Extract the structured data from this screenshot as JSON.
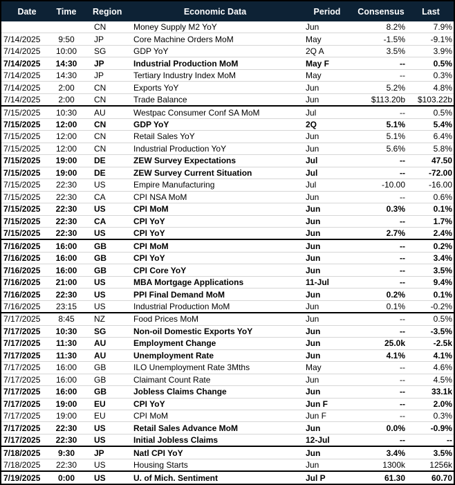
{
  "colors": {
    "header_bg": "#0d2235",
    "header_text": "#ffffff",
    "row_divider": "#d6d6d6",
    "group_divider": "#000000",
    "body_text": "#000000"
  },
  "table": {
    "columns": [
      {
        "key": "date",
        "label": "Date"
      },
      {
        "key": "time",
        "label": "Time"
      },
      {
        "key": "region",
        "label": "Region"
      },
      {
        "key": "event",
        "label": "Economic Data"
      },
      {
        "key": "period",
        "label": "Period"
      },
      {
        "key": "consensus",
        "label": "Consensus"
      },
      {
        "key": "last",
        "label": "Last"
      }
    ],
    "rows": [
      {
        "date": "",
        "time": "",
        "region": "CN",
        "event": "Money Supply M2 YoY",
        "period": "Jun",
        "consensus": "8.2%",
        "last": "7.9%",
        "bold": false,
        "group_end": false
      },
      {
        "date": "7/14/2025",
        "time": "9:50",
        "region": "JP",
        "event": "Core Machine Orders MoM",
        "period": "May",
        "consensus": "-1.5%",
        "last": "-9.1%",
        "bold": false,
        "group_end": false
      },
      {
        "date": "7/14/2025",
        "time": "10:00",
        "region": "SG",
        "event": "GDP YoY",
        "period": "2Q A",
        "consensus": "3.5%",
        "last": "3.9%",
        "bold": false,
        "group_end": false
      },
      {
        "date": "7/14/2025",
        "time": "14:30",
        "region": "JP",
        "event": "Industrial Production MoM",
        "period": "May F",
        "consensus": "--",
        "last": "0.5%",
        "bold": true,
        "group_end": false
      },
      {
        "date": "7/14/2025",
        "time": "14:30",
        "region": "JP",
        "event": "Tertiary Industry Index MoM",
        "period": "May",
        "consensus": "--",
        "last": "0.3%",
        "bold": false,
        "group_end": false
      },
      {
        "date": "7/14/2025",
        "time": "2:00",
        "region": "CN",
        "event": "Exports YoY",
        "period": "Jun",
        "consensus": "5.2%",
        "last": "4.8%",
        "bold": false,
        "group_end": false
      },
      {
        "date": "7/14/2025",
        "time": "2:00",
        "region": "CN",
        "event": "Trade Balance",
        "period": "Jun",
        "consensus": "$113.20b",
        "last": "$103.22b",
        "bold": false,
        "group_end": true
      },
      {
        "date": "7/15/2025",
        "time": "10:30",
        "region": "AU",
        "event": "Westpac Consumer Conf SA MoM",
        "period": "Jul",
        "consensus": "--",
        "last": "0.5%",
        "bold": false,
        "group_end": false
      },
      {
        "date": "7/15/2025",
        "time": "12:00",
        "region": "CN",
        "event": "GDP YoY",
        "period": "2Q",
        "consensus": "5.1%",
        "last": "5.4%",
        "bold": true,
        "group_end": false
      },
      {
        "date": "7/15/2025",
        "time": "12:00",
        "region": "CN",
        "event": "Retail Sales YoY",
        "period": "Jun",
        "consensus": "5.1%",
        "last": "6.4%",
        "bold": false,
        "group_end": false
      },
      {
        "date": "7/15/2025",
        "time": "12:00",
        "region": "CN",
        "event": "Industrial Production YoY",
        "period": "Jun",
        "consensus": "5.6%",
        "last": "5.8%",
        "bold": false,
        "group_end": false
      },
      {
        "date": "7/15/2025",
        "time": "19:00",
        "region": "DE",
        "event": "ZEW Survey Expectations",
        "period": "Jul",
        "consensus": "--",
        "last": "47.50",
        "bold": true,
        "group_end": false
      },
      {
        "date": "7/15/2025",
        "time": "19:00",
        "region": "DE",
        "event": "ZEW Survey Current Situation",
        "period": "Jul",
        "consensus": "--",
        "last": "-72.00",
        "bold": true,
        "group_end": false
      },
      {
        "date": "7/15/2025",
        "time": "22:30",
        "region": "US",
        "event": "Empire Manufacturing",
        "period": "Jul",
        "consensus": "-10.00",
        "last": "-16.00",
        "bold": false,
        "group_end": false
      },
      {
        "date": "7/15/2025",
        "time": "22:30",
        "region": "CA",
        "event": "CPI NSA MoM",
        "period": "Jun",
        "consensus": "--",
        "last": "0.6%",
        "bold": false,
        "group_end": false
      },
      {
        "date": "7/15/2025",
        "time": "22:30",
        "region": "US",
        "event": "CPI MoM",
        "period": "Jun",
        "consensus": "0.3%",
        "last": "0.1%",
        "bold": true,
        "group_end": false
      },
      {
        "date": "7/15/2025",
        "time": "22:30",
        "region": "CA",
        "event": "CPI YoY",
        "period": "Jun",
        "consensus": "--",
        "last": "1.7%",
        "bold": true,
        "group_end": false
      },
      {
        "date": "7/15/2025",
        "time": "22:30",
        "region": "US",
        "event": "CPI YoY",
        "period": "Jun",
        "consensus": "2.7%",
        "last": "2.4%",
        "bold": true,
        "group_end": true
      },
      {
        "date": "7/16/2025",
        "time": "16:00",
        "region": "GB",
        "event": "CPI MoM",
        "period": "Jun",
        "consensus": "--",
        "last": "0.2%",
        "bold": true,
        "group_end": false
      },
      {
        "date": "7/16/2025",
        "time": "16:00",
        "region": "GB",
        "event": "CPI YoY",
        "period": "Jun",
        "consensus": "--",
        "last": "3.4%",
        "bold": true,
        "group_end": false
      },
      {
        "date": "7/16/2025",
        "time": "16:00",
        "region": "GB",
        "event": "CPI Core YoY",
        "period": "Jun",
        "consensus": "--",
        "last": "3.5%",
        "bold": true,
        "group_end": false
      },
      {
        "date": "7/16/2025",
        "time": "21:00",
        "region": "US",
        "event": "MBA Mortgage Applications",
        "period": "11-Jul",
        "consensus": "--",
        "last": "9.4%",
        "bold": true,
        "group_end": false
      },
      {
        "date": "7/16/2025",
        "time": "22:30",
        "region": "US",
        "event": "PPI Final Demand MoM",
        "period": "Jun",
        "consensus": "0.2%",
        "last": "0.1%",
        "bold": true,
        "group_end": false
      },
      {
        "date": "7/16/2025",
        "time": "23:15",
        "region": "US",
        "event": "Industrial Production MoM",
        "period": "Jun",
        "consensus": "0.1%",
        "last": "-0.2%",
        "bold": false,
        "group_end": true
      },
      {
        "date": "7/17/2025",
        "time": "8:45",
        "region": "NZ",
        "event": "Food Prices MoM",
        "period": "Jun",
        "consensus": "--",
        "last": "0.5%",
        "bold": false,
        "group_end": false
      },
      {
        "date": "7/17/2025",
        "time": "10:30",
        "region": "SG",
        "event": "Non-oil Domestic Exports YoY",
        "period": "Jun",
        "consensus": "--",
        "last": "-3.5%",
        "bold": true,
        "group_end": false
      },
      {
        "date": "7/17/2025",
        "time": "11:30",
        "region": "AU",
        "event": "Employment Change",
        "period": "Jun",
        "consensus": "25.0k",
        "last": "-2.5k",
        "bold": true,
        "group_end": false
      },
      {
        "date": "7/17/2025",
        "time": "11:30",
        "region": "AU",
        "event": "Unemployment Rate",
        "period": "Jun",
        "consensus": "4.1%",
        "last": "4.1%",
        "bold": true,
        "group_end": false
      },
      {
        "date": "7/17/2025",
        "time": "16:00",
        "region": "GB",
        "event": "ILO Unemployment Rate 3Mths",
        "period": "May",
        "consensus": "--",
        "last": "4.6%",
        "bold": false,
        "group_end": false
      },
      {
        "date": "7/17/2025",
        "time": "16:00",
        "region": "GB",
        "event": "Claimant Count Rate",
        "period": "Jun",
        "consensus": "--",
        "last": "4.5%",
        "bold": false,
        "group_end": false
      },
      {
        "date": "7/17/2025",
        "time": "16:00",
        "region": "GB",
        "event": "Jobless Claims Change",
        "period": "Jun",
        "consensus": "--",
        "last": "33.1k",
        "bold": true,
        "group_end": false
      },
      {
        "date": "7/17/2025",
        "time": "19:00",
        "region": "EU",
        "event": "CPI YoY",
        "period": "Jun F",
        "consensus": "--",
        "last": "2.0%",
        "bold": true,
        "group_end": false
      },
      {
        "date": "7/17/2025",
        "time": "19:00",
        "region": "EU",
        "event": "CPI MoM",
        "period": "Jun F",
        "consensus": "--",
        "last": "0.3%",
        "bold": false,
        "group_end": false
      },
      {
        "date": "7/17/2025",
        "time": "22:30",
        "region": "US",
        "event": "Retail Sales Advance MoM",
        "period": "Jun",
        "consensus": "0.0%",
        "last": "-0.9%",
        "bold": true,
        "group_end": false
      },
      {
        "date": "7/17/2025",
        "time": "22:30",
        "region": "US",
        "event": "Initial Jobless Claims",
        "period": "12-Jul",
        "consensus": "--",
        "last": "--",
        "bold": true,
        "group_end": true
      },
      {
        "date": "7/18/2025",
        "time": "9:30",
        "region": "JP",
        "event": "Natl CPI YoY",
        "period": "Jun",
        "consensus": "3.4%",
        "last": "3.5%",
        "bold": true,
        "group_end": false
      },
      {
        "date": "7/18/2025",
        "time": "22:30",
        "region": "US",
        "event": "Housing Starts",
        "period": "Jun",
        "consensus": "1300k",
        "last": "1256k",
        "bold": false,
        "group_end": true
      },
      {
        "date": "7/19/2025",
        "time": "0:00",
        "region": "US",
        "event": "U. of Mich. Sentiment",
        "period": "Jul P",
        "consensus": "61.30",
        "last": "60.70",
        "bold": true,
        "group_end": false
      }
    ]
  }
}
